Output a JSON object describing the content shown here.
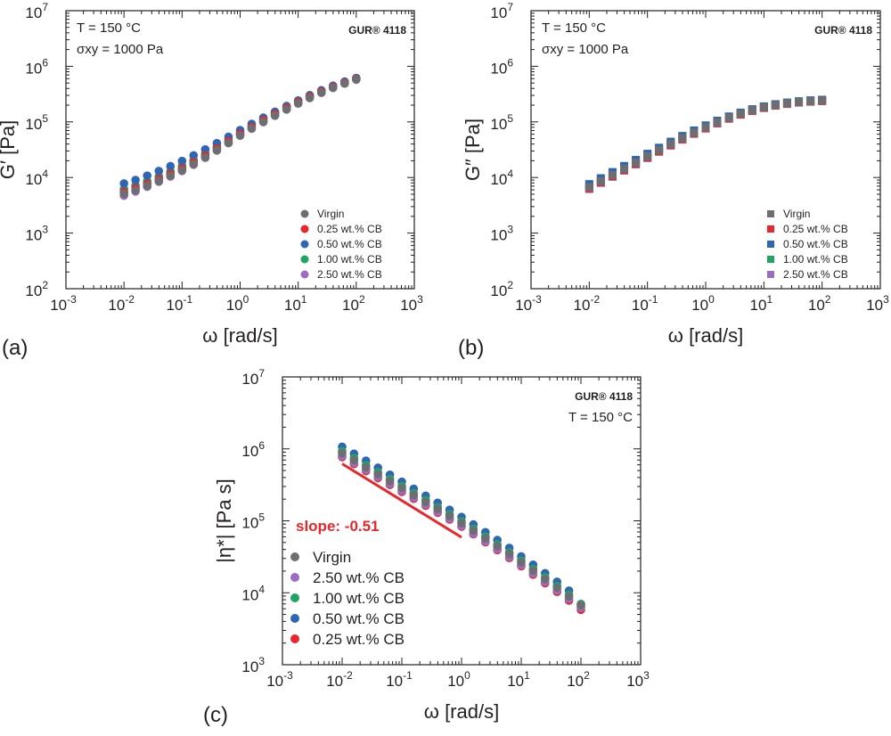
{
  "colors": {
    "Virgin": "#6d6e71",
    "0.25 wt.% CB": "#e8262b",
    "0.50 wt.% CB": "#2f66b3",
    "1.00 wt.% CB": "#1fa463",
    "2.50 wt.% CB": "#9b6cc0",
    "slope_line": "#e8262b",
    "axes": "#231f20"
  },
  "chart_data": [
    {
      "panel": "(a)",
      "type": "scatter",
      "marker": "circle",
      "scale": "log-log",
      "xlabel": "ω [rad/s]",
      "ylabel": "G′ [Pa]",
      "xlim": [
        0.001,
        1000
      ],
      "ylim": [
        100,
        10000000
      ],
      "x_ticks": [
        "10-3",
        "10-2",
        "10-1",
        "100",
        "101",
        "102",
        "103"
      ],
      "y_ticks": [
        "102",
        "103",
        "104",
        "105",
        "106",
        "107"
      ],
      "annotations": [
        "T = 150 °C",
        "σxy = 1000 Pa"
      ],
      "brand": "GUR® 4118",
      "legend_position": "bottom-right",
      "legend": [
        "Virgin",
        "0.25 wt.% CB",
        "0.50 wt.% CB",
        "1.00 wt.% CB",
        "2.50 wt.% CB"
      ],
      "x": [
        0.01,
        0.0158,
        0.0251,
        0.0398,
        0.0631,
        0.1,
        0.158,
        0.251,
        0.398,
        0.631,
        1,
        1.58,
        2.51,
        3.98,
        6.31,
        10,
        15.8,
        25.1,
        39.8,
        63.1,
        100
      ],
      "series": [
        {
          "name": "Virgin",
          "values": [
            5100,
            5900,
            7100,
            8700,
            10700,
            13400,
            17400,
            23000,
            31000,
            42000,
            57000,
            76000,
            100000,
            130000,
            168000,
            215000,
            270000,
            335000,
            410000,
            490000,
            580000
          ]
        },
        {
          "name": "0.25 wt.% CB",
          "values": [
            5500,
            6400,
            7700,
            9400,
            11600,
            14500,
            18800,
            24800,
            33300,
            45000,
            61000,
            81000,
            107000,
            139000,
            178000,
            227000,
            284000,
            350000,
            425000,
            505000,
            590000
          ]
        },
        {
          "name": "0.50 wt.% CB",
          "values": [
            7800,
            9000,
            10800,
            13100,
            16000,
            19800,
            25000,
            32000,
            41500,
            54000,
            71000,
            92000,
            119000,
            152000,
            193000,
            243000,
            302000,
            370000,
            447000,
            530000,
            615000
          ]
        },
        {
          "name": "1.00 wt.% CB",
          "values": [
            6200,
            7200,
            8600,
            10500,
            13000,
            16200,
            20800,
            27300,
            36300,
            48500,
            65000,
            85500,
            112000,
            145000,
            185000,
            234000,
            292000,
            358000,
            433000,
            515000,
            600000
          ]
        },
        {
          "name": "2.50 wt.% CB",
          "values": [
            4700,
            5600,
            6800,
            8400,
            10400,
            13100,
            17000,
            22600,
            30500,
            41500,
            56500,
            75500,
            99500,
            129500,
            167000,
            214000,
            269000,
            334000,
            409000,
            489000,
            575000
          ]
        }
      ]
    },
    {
      "panel": "(b)",
      "type": "scatter",
      "marker": "square",
      "scale": "log-log",
      "xlabel": "ω [rad/s]",
      "ylabel": "G″ [Pa]",
      "xlim": [
        0.001,
        1000
      ],
      "ylim": [
        100,
        10000000
      ],
      "x_ticks": [
        "10-3",
        "10-2",
        "10-1",
        "100",
        "101",
        "102",
        "103"
      ],
      "y_ticks": [
        "102",
        "103",
        "104",
        "105",
        "106",
        "107"
      ],
      "annotations": [
        "T = 150 °C",
        "σxy = 1000 Pa"
      ],
      "brand": "GUR® 4118",
      "legend_position": "bottom-right",
      "legend": [
        "Virgin",
        "0.25 wt.% CB",
        "0.50 wt.% CB",
        "1.00 wt.% CB",
        "2.50 wt.% CB"
      ],
      "x": [
        0.01,
        0.0158,
        0.0251,
        0.0398,
        0.0631,
        0.1,
        0.158,
        0.251,
        0.398,
        0.631,
        1,
        1.58,
        2.51,
        3.98,
        6.31,
        10,
        15.8,
        25.1,
        39.8,
        63.1,
        100
      ],
      "series": [
        {
          "name": "Virgin",
          "values": [
            6700,
            8600,
            11100,
            14300,
            18500,
            24000,
            31000,
            40000,
            51000,
            64000,
            80000,
            98000,
            118000,
            140000,
            162000,
            183000,
            201000,
            216000,
            228000,
            236000,
            242000
          ]
        },
        {
          "name": "0.25 wt.% CB",
          "values": [
            6400,
            8200,
            10600,
            13700,
            17700,
            23000,
            29800,
            38500,
            49000,
            62000,
            77000,
            95000,
            115000,
            136000,
            158000,
            179000,
            197000,
            212000,
            224000,
            232000,
            238000
          ]
        },
        {
          "name": "0.50 wt.% CB",
          "values": [
            7600,
            9700,
            12500,
            16100,
            20700,
            26700,
            34300,
            44000,
            55800,
            70000,
            86500,
            105000,
            125000,
            147000,
            169000,
            190000,
            208000,
            223000,
            235000,
            244000,
            250000
          ]
        },
        {
          "name": "1.00 wt.% CB",
          "values": [
            7000,
            9000,
            11600,
            15000,
            19300,
            25000,
            32200,
            41500,
            52800,
            66500,
            82500,
            101000,
            121000,
            143000,
            165000,
            186000,
            204000,
            219000,
            231000,
            240000,
            246000
          ]
        },
        {
          "name": "2.50 wt.% CB",
          "values": [
            6200,
            8000,
            10300,
            13300,
            17200,
            22400,
            29000,
            37500,
            48000,
            61000,
            76000,
            94000,
            114000,
            135000,
            157000,
            178000,
            196000,
            211000,
            223000,
            231000,
            237000
          ]
        }
      ]
    },
    {
      "panel": "(c)",
      "type": "scatter",
      "marker": "circle",
      "scale": "log-log",
      "xlabel": "ω [rad/s]",
      "ylabel": "|η*| [Pa s]",
      "xlim": [
        0.001,
        1000
      ],
      "ylim": [
        1000,
        10000000
      ],
      "x_ticks": [
        "10-3",
        "10-2",
        "10-1",
        "100",
        "101",
        "102",
        "103"
      ],
      "y_ticks": [
        "103",
        "104",
        "105",
        "106",
        "107"
      ],
      "annotations": [
        "T = 150 °C"
      ],
      "brand": "GUR® 4118",
      "slope_label": "slope: -0.51",
      "slope_line": {
        "x": [
          0.01,
          1
        ],
        "y": [
          620000,
          59000
        ]
      },
      "legend_position": "bottom-left",
      "legend": [
        "Virgin",
        "2.50 wt.% CB",
        "1.00 wt.% CB",
        "0.50 wt.% CB",
        "0.25 wt.% CB"
      ],
      "x": [
        0.01,
        0.0158,
        0.0251,
        0.0398,
        0.0631,
        0.1,
        0.158,
        0.251,
        0.398,
        0.631,
        1,
        1.58,
        2.51,
        3.98,
        6.31,
        10,
        15.8,
        25.1,
        39.8,
        63.1,
        100
      ],
      "series": [
        {
          "name": "Virgin",
          "values": [
            870000,
            695000,
            555000,
            445000,
            356000,
            286000,
            229000,
            183000,
            146000,
            117000,
            93000,
            73000,
            57000,
            44500,
            34500,
            26500,
            20300,
            15500,
            11800,
            8900,
            6700
          ]
        },
        {
          "name": "2.50 wt.% CB",
          "values": [
            800000,
            640000,
            512000,
            410000,
            328000,
            263000,
            211000,
            168000,
            134000,
            107000,
            85000,
            66500,
            52000,
            40500,
            31500,
            24200,
            18600,
            14200,
            10800,
            8200,
            6200
          ]
        },
        {
          "name": "1.00 wt.% CB",
          "values": [
            930000,
            743000,
            594000,
            475000,
            380000,
            304000,
            243000,
            194000,
            155000,
            124000,
            98500,
            77500,
            60500,
            47000,
            36500,
            28000,
            21500,
            16400,
            12400,
            9400,
            7000
          ]
        },
        {
          "name": "0.50 wt.% CB",
          "values": [
            1070000,
            856000,
            684000,
            547000,
            437000,
            349000,
            279000,
            223000,
            178000,
            142000,
            113000,
            89000,
            69500,
            54000,
            42000,
            32000,
            24500,
            18700,
            14200,
            10700,
            6500
          ]
        },
        {
          "name": "0.25 wt.% CB",
          "values": [
            770000,
            616000,
            493000,
            395000,
            316000,
            253000,
            203000,
            162000,
            130000,
            104000,
            83000,
            65000,
            50500,
            39200,
            30400,
            23400,
            17900,
            13600,
            10300,
            7800,
            5800
          ]
        }
      ]
    }
  ]
}
